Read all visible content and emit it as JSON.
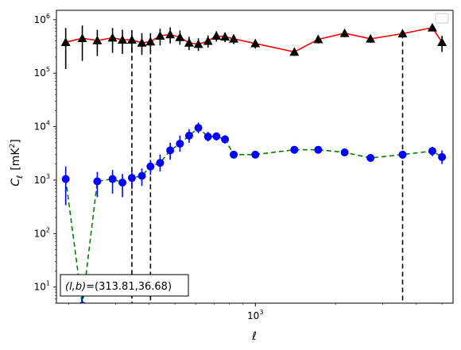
{
  "chart_data": {
    "type": "line",
    "title": "",
    "xlabel": "ℓ",
    "ylabel": "Cℓ [mK²]",
    "ylabel_parts": {
      "main": "C",
      "sub": "ℓ",
      "unit_open": "[mK",
      "unit_sup": "2",
      "unit_close": "]"
    },
    "x_scale": "log",
    "y_scale": "log",
    "xlim": [
      180,
      5500
    ],
    "ylim": [
      5,
      1500000
    ],
    "x_ticks": [
      {
        "value": 1000,
        "base": "10",
        "exp": "3"
      }
    ],
    "y_ticks": [
      {
        "value": 10,
        "base": "10",
        "exp": "1"
      },
      {
        "value": 100,
        "base": "10",
        "exp": "2"
      },
      {
        "value": 1000,
        "base": "10",
        "exp": "3"
      },
      {
        "value": 10000,
        "base": "10",
        "exp": "4"
      },
      {
        "value": 100000,
        "base": "10",
        "exp": "5"
      },
      {
        "value": 1000000,
        "base": "10",
        "exp": "6"
      }
    ],
    "legend": "upper right",
    "vertical_lines": [
      {
        "x": 345,
        "style": "dashed",
        "color": "#000000",
        "y_top": 420000
      },
      {
        "x": 405,
        "style": "dashed",
        "color": "#000000",
        "y_top": 390000
      },
      {
        "x": 3560,
        "style": "dashed",
        "color": "#000000",
        "y_top": 550000
      }
    ],
    "annotation": {
      "text": "(l,b)=(313.81,36.68)",
      "prefix_italic": "(l,b)",
      "suffix": "=(313.81,36.68)"
    },
    "series": [
      {
        "marker": "triangle",
        "line_color": "#ff0000",
        "marker_color": "#000000",
        "line_style": "solid",
        "points": [
          {
            "x": 195,
            "y": 380000,
            "lo": 120000,
            "hi": 700000
          },
          {
            "x": 225,
            "y": 450000,
            "lo": 170000,
            "hi": 780000
          },
          {
            "x": 256,
            "y": 410000,
            "lo": 210000,
            "hi": 650000
          },
          {
            "x": 292,
            "y": 460000,
            "lo": 240000,
            "hi": 700000
          },
          {
            "x": 318,
            "y": 420000,
            "lo": 230000,
            "hi": 650000
          },
          {
            "x": 345,
            "y": 420000,
            "lo": 240000,
            "hi": 640000
          },
          {
            "x": 376,
            "y": 370000,
            "lo": 220000,
            "hi": 560000
          },
          {
            "x": 405,
            "y": 390000,
            "lo": 250000,
            "hi": 560000
          },
          {
            "x": 440,
            "y": 500000,
            "lo": 330000,
            "hi": 680000
          },
          {
            "x": 480,
            "y": 530000,
            "lo": 360000,
            "hi": 720000
          },
          {
            "x": 522,
            "y": 470000,
            "lo": 340000,
            "hi": 630000
          },
          {
            "x": 565,
            "y": 370000,
            "lo": 270000,
            "hi": 480000
          },
          {
            "x": 612,
            "y": 350000,
            "lo": 260000,
            "hi": 450000
          },
          {
            "x": 665,
            "y": 400000,
            "lo": 300000,
            "hi": 510000
          },
          {
            "x": 715,
            "y": 500000,
            "lo": 390000,
            "hi": 610000
          },
          {
            "x": 770,
            "y": 480000,
            "lo": 380000,
            "hi": 580000
          },
          {
            "x": 830,
            "y": 440000,
            "lo": 350000,
            "hi": 530000
          },
          {
            "x": 1000,
            "y": 360000,
            "lo": 290000,
            "hi": 430000
          },
          {
            "x": 1400,
            "y": 250000,
            "lo": 210000,
            "hi": 290000
          },
          {
            "x": 1720,
            "y": 430000,
            "lo": 360000,
            "hi": 500000
          },
          {
            "x": 2160,
            "y": 560000,
            "lo": 470000,
            "hi": 650000
          },
          {
            "x": 2700,
            "y": 440000,
            "lo": 370000,
            "hi": 510000
          },
          {
            "x": 3560,
            "y": 550000,
            "lo": 470000,
            "hi": 630000
          },
          {
            "x": 4600,
            "y": 710000,
            "lo": 610000,
            "hi": 810000
          },
          {
            "x": 5000,
            "y": 380000,
            "lo": 250000,
            "hi": 500000
          }
        ]
      },
      {
        "marker": "circle",
        "line_color": "#008000",
        "marker_color": "#0000ff",
        "line_style": "dashed",
        "points": [
          {
            "x": 195,
            "y": 1050,
            "lo": 340,
            "hi": 1800
          },
          {
            "x": 225,
            "y": 4.5,
            "lo": 3,
            "hi": 17
          },
          {
            "x": 256,
            "y": 950,
            "lo": 480,
            "hi": 1420
          },
          {
            "x": 292,
            "y": 1050,
            "lo": 560,
            "hi": 1550
          },
          {
            "x": 318,
            "y": 900,
            "lo": 480,
            "hi": 1300
          },
          {
            "x": 345,
            "y": 1100,
            "lo": 680,
            "hi": 1550
          },
          {
            "x": 376,
            "y": 1200,
            "lo": 780,
            "hi": 1650
          },
          {
            "x": 405,
            "y": 1800,
            "lo": 1250,
            "hi": 2400
          },
          {
            "x": 440,
            "y": 2100,
            "lo": 1450,
            "hi": 3000
          },
          {
            "x": 480,
            "y": 3600,
            "lo": 2400,
            "hi": 5000
          },
          {
            "x": 522,
            "y": 4800,
            "lo": 3400,
            "hi": 6800
          },
          {
            "x": 565,
            "y": 6800,
            "lo": 5000,
            "hi": 9000
          },
          {
            "x": 612,
            "y": 9500,
            "lo": 7500,
            "hi": 12000
          },
          {
            "x": 665,
            "y": 6500,
            "lo": 5300,
            "hi": 8000
          },
          {
            "x": 715,
            "y": 6600,
            "lo": 5500,
            "hi": 7800
          },
          {
            "x": 770,
            "y": 5800,
            "lo": 4800,
            "hi": 6900
          },
          {
            "x": 830,
            "y": 3000,
            "lo": 2600,
            "hi": 3500
          },
          {
            "x": 1000,
            "y": 3000,
            "lo": 2600,
            "hi": 3500
          },
          {
            "x": 1400,
            "y": 3700,
            "lo": 3300,
            "hi": 4200
          },
          {
            "x": 1720,
            "y": 3700,
            "lo": 3300,
            "hi": 4200
          },
          {
            "x": 2160,
            "y": 3300,
            "lo": 2900,
            "hi": 3700
          },
          {
            "x": 2700,
            "y": 2600,
            "lo": 2300,
            "hi": 2900
          },
          {
            "x": 3560,
            "y": 3000,
            "lo": 2500,
            "hi": 3500
          },
          {
            "x": 4600,
            "y": 3500,
            "lo": 2800,
            "hi": 4200
          },
          {
            "x": 5000,
            "y": 2700,
            "lo": 2000,
            "hi": 3600
          }
        ]
      }
    ]
  }
}
